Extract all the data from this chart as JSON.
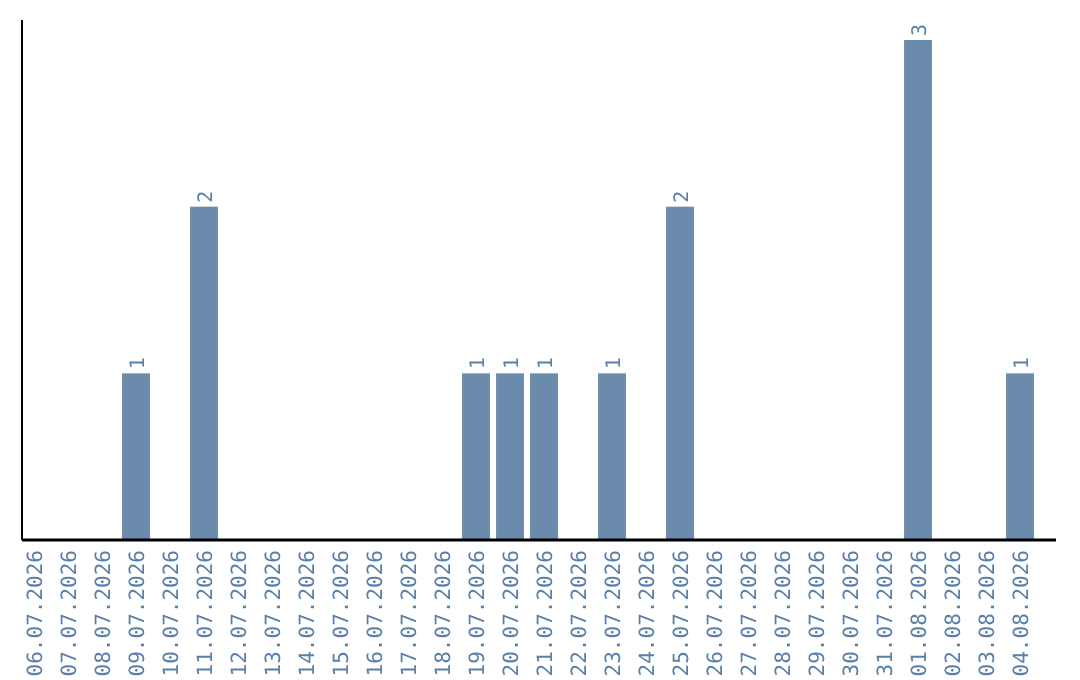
{
  "chart_data": {
    "type": "bar",
    "categories": [
      "06.07.2026",
      "07.07.2026",
      "08.07.2026",
      "09.07.2026",
      "10.07.2026",
      "11.07.2026",
      "12.07.2026",
      "13.07.2026",
      "14.07.2026",
      "15.07.2026",
      "16.07.2026",
      "17.07.2026",
      "18.07.2026",
      "19.07.2026",
      "20.07.2026",
      "21.07.2026",
      "22.07.2026",
      "23.07.2026",
      "24.07.2026",
      "25.07.2026",
      "26.07.2026",
      "27.07.2026",
      "28.07.2026",
      "29.07.2026",
      "30.07.2026",
      "31.07.2026",
      "01.08.2026",
      "02.08.2026",
      "03.08.2026",
      "04.08.2026"
    ],
    "values": [
      0,
      0,
      0,
      1,
      0,
      2,
      0,
      0,
      0,
      0,
      0,
      0,
      0,
      1,
      1,
      1,
      0,
      1,
      0,
      2,
      0,
      0,
      0,
      0,
      0,
      0,
      3,
      0,
      0,
      1
    ],
    "value_labels": [
      null,
      null,
      null,
      "1",
      null,
      "2",
      null,
      null,
      null,
      null,
      null,
      null,
      null,
      "1",
      "1",
      "1",
      null,
      "1",
      null,
      "2",
      null,
      null,
      null,
      null,
      null,
      null,
      "3",
      null,
      null,
      "1"
    ],
    "color": "#6a8bab",
    "ylim": [
      0,
      3.12
    ],
    "tick_labels": "x"
  }
}
